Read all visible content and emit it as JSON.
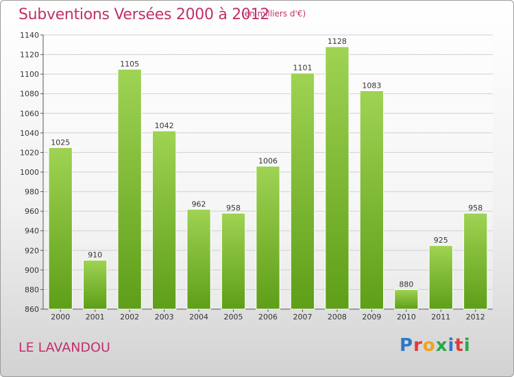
{
  "header": {
    "title": "Subventions Versées 2000 à 2012",
    "subtitle": "(en milliers d'€)"
  },
  "footer": {
    "place": "LE LAVANDOU",
    "logo": "Proxiti"
  },
  "colors": {
    "title": "#c0306a",
    "bar_top": "#9fd353",
    "bar_bottom": "#5e9e18",
    "grid": "#cfcfcf",
    "logo_letters": [
      "#2b78c9",
      "#e03a3a",
      "#f2a11f",
      "#2aa84a",
      "#2b78c9",
      "#e03a3a",
      "#2aa84a"
    ]
  },
  "chart_data": {
    "type": "bar",
    "title": "Subventions Versées 2000 à 2012",
    "subtitle": "(en milliers d'€)",
    "categories": [
      "2000",
      "2001",
      "2002",
      "2003",
      "2004",
      "2005",
      "2006",
      "2007",
      "2008",
      "2009",
      "2010",
      "2011",
      "2012"
    ],
    "values": [
      1025,
      910,
      1105,
      1042,
      962,
      958,
      1006,
      1101,
      1128,
      1083,
      880,
      925,
      958
    ],
    "xlabel": "",
    "ylabel": "",
    "ylim": [
      860,
      1140
    ],
    "yticks": [
      860,
      880,
      900,
      920,
      940,
      960,
      980,
      1000,
      1020,
      1040,
      1060,
      1080,
      1100,
      1120,
      1140
    ],
    "grid": true,
    "legend": "none"
  }
}
